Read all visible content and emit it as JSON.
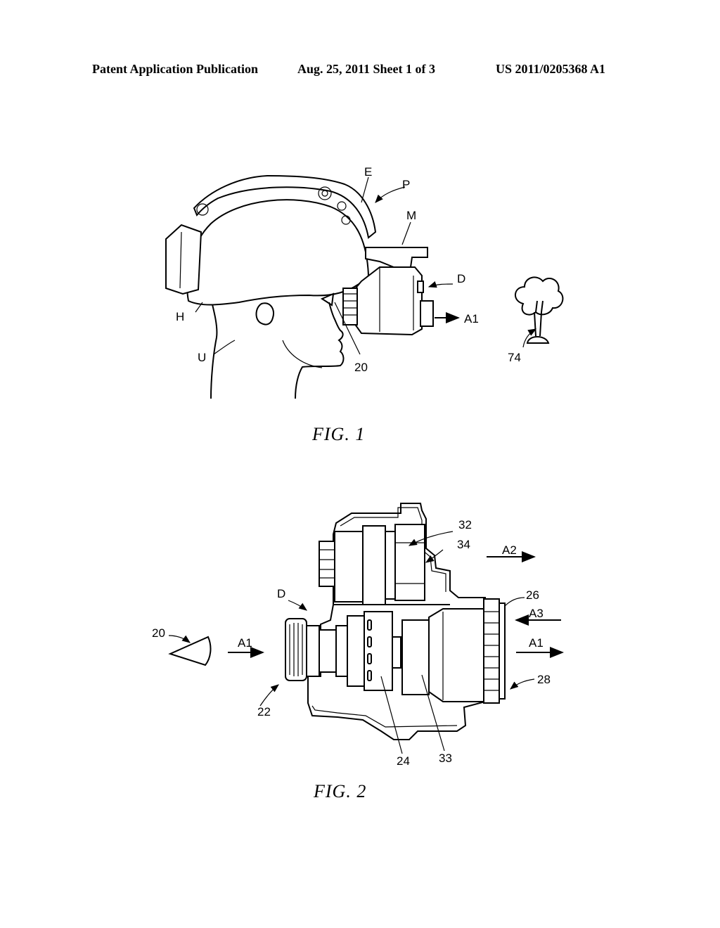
{
  "header": {
    "left": "Patent Application Publication",
    "middle": "Aug. 25, 2011   Sheet 1 of 3",
    "right": "US 2011/0205368 A1"
  },
  "figures": [
    {
      "caption": "FIG.  1",
      "labels": {
        "E": "E",
        "P": "P",
        "M": "M",
        "D": "D",
        "A1": "A1",
        "H": "H",
        "U": "U",
        "n20": "20",
        "n74": "74"
      }
    },
    {
      "caption": "FIG.  2",
      "labels": {
        "n32": "32",
        "n34": "34",
        "A2": "A2",
        "D": "D",
        "n26": "26",
        "A3": "A3",
        "n20": "20",
        "A1_left": "A1",
        "A1_right": "A1",
        "n22": "22",
        "n28": "28",
        "n24": "24",
        "n33": "33"
      }
    }
  ]
}
